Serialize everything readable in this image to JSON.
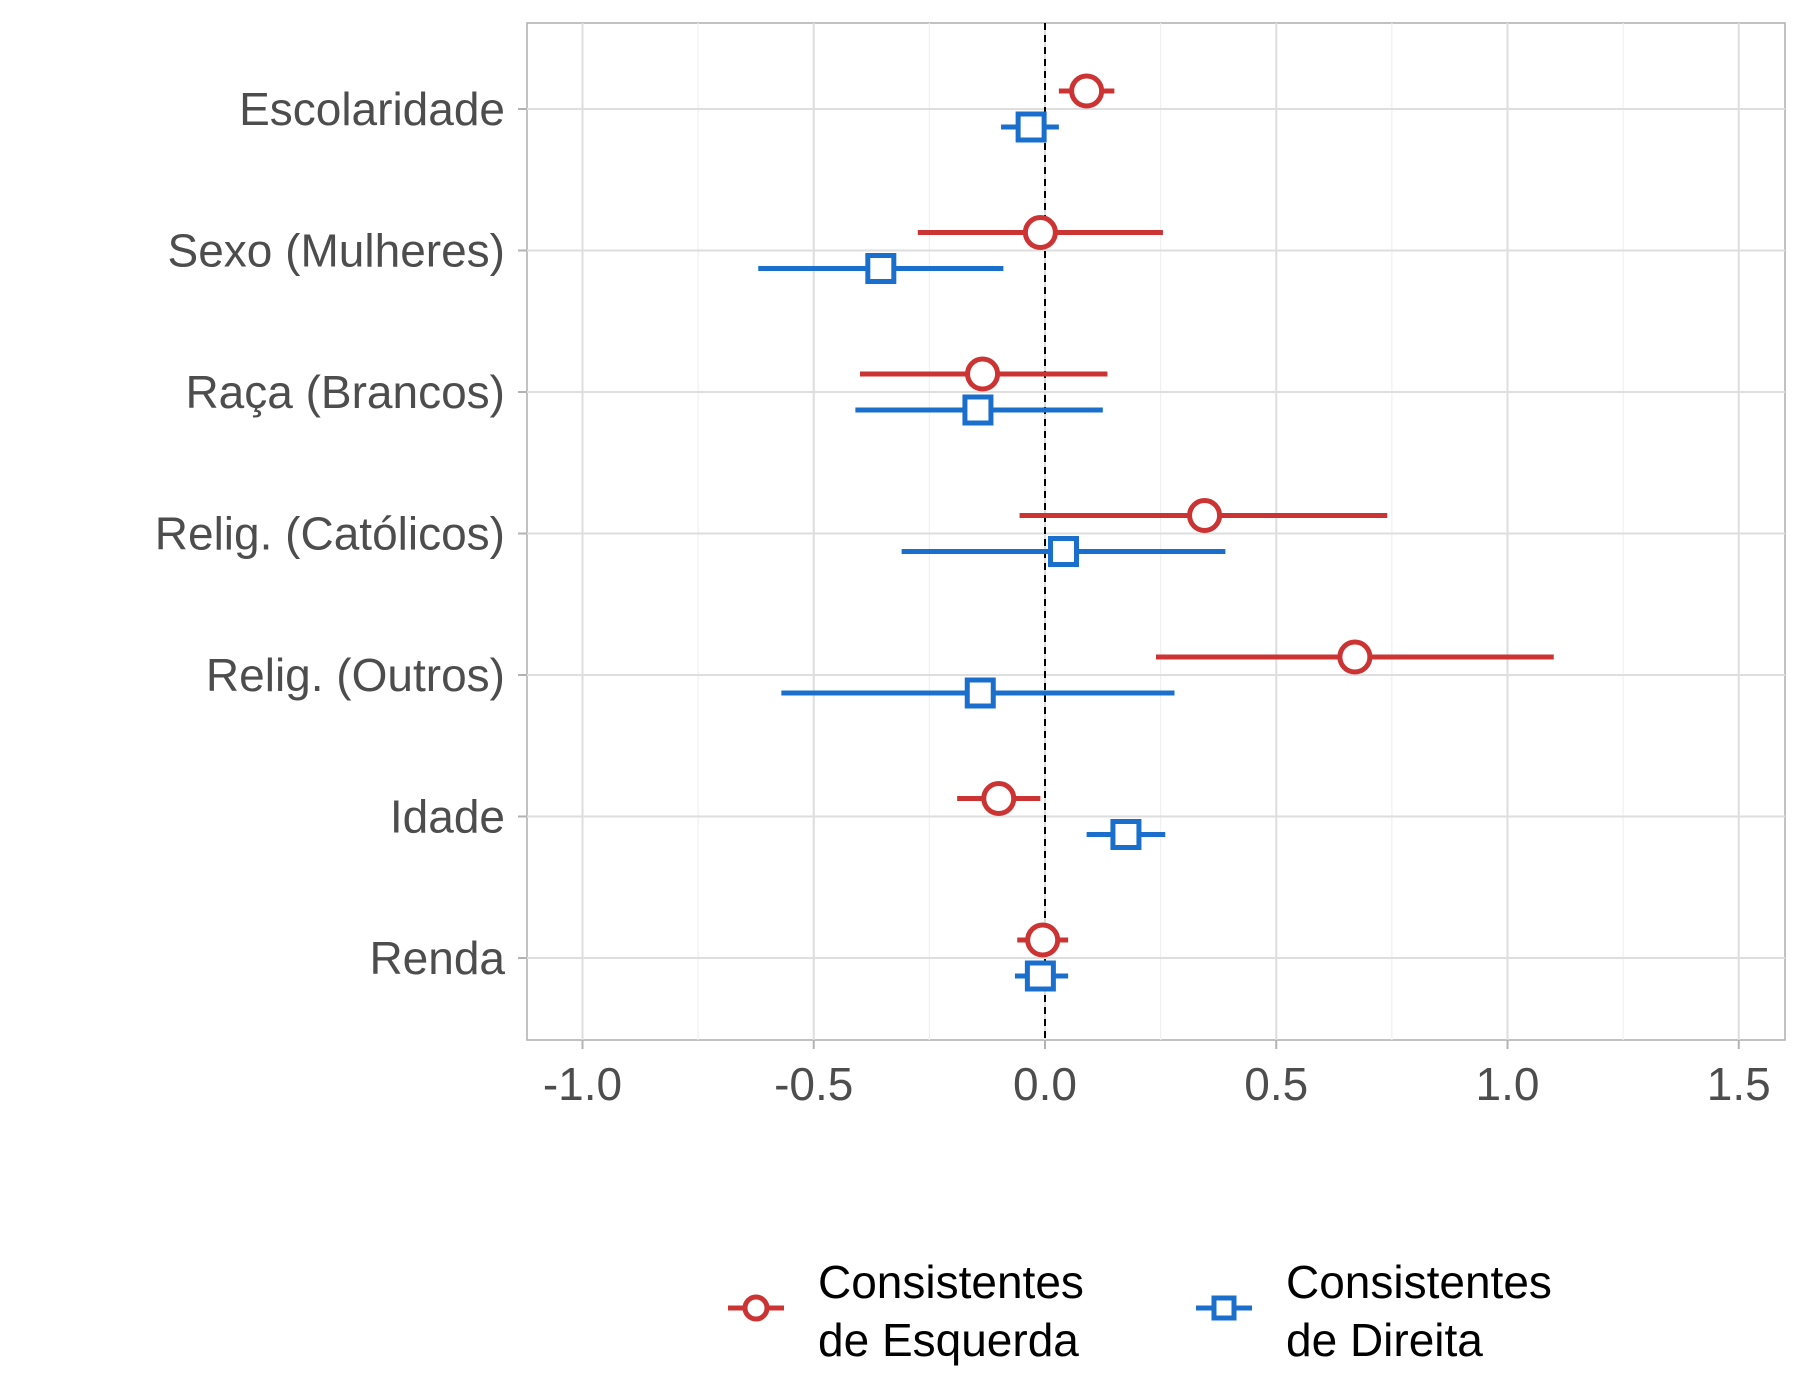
{
  "chart_data": {
    "type": "scatter",
    "title": "",
    "xlabel": "",
    "ylabel": "",
    "categories": [
      "Escolaridade",
      "Sexo (Mulheres)",
      "Raça (Brancos)",
      "Relig. (Católicos)",
      "Relig. (Outros)",
      "Idade",
      "Renda"
    ],
    "x_ticks": [
      "-1.0",
      "-0.5",
      "0.0",
      "0.5",
      "1.0",
      "1.5"
    ],
    "xlim": [
      -1.12,
      1.6
    ],
    "reference_line_x": 0,
    "grid": true,
    "legend_position": "bottom",
    "series": [
      {
        "name": "Consistentes de Esquerda",
        "name_lines": [
          "Consistentes",
          "de Esquerda"
        ],
        "color": "#cc3333",
        "marker": "circle",
        "estimates": [
          0.09,
          -0.01,
          -0.135,
          0.345,
          0.67,
          -0.1,
          -0.005
        ],
        "lower": [
          0.03,
          -0.275,
          -0.4,
          -0.055,
          0.24,
          -0.19,
          -0.06
        ],
        "upper": [
          0.15,
          0.255,
          0.135,
          0.74,
          1.1,
          -0.01,
          0.05
        ]
      },
      {
        "name": "Consistentes de Direita",
        "name_lines": [
          "Consistentes",
          "de Direita"
        ],
        "color": "#1a6fcc",
        "marker": "square",
        "estimates": [
          -0.03,
          -0.355,
          -0.145,
          0.04,
          -0.14,
          0.175,
          -0.01
        ],
        "lower": [
          -0.095,
          -0.62,
          -0.41,
          -0.31,
          -0.57,
          0.09,
          -0.065
        ],
        "upper": [
          0.03,
          -0.09,
          0.125,
          0.39,
          0.28,
          0.26,
          0.05
        ]
      }
    ]
  }
}
